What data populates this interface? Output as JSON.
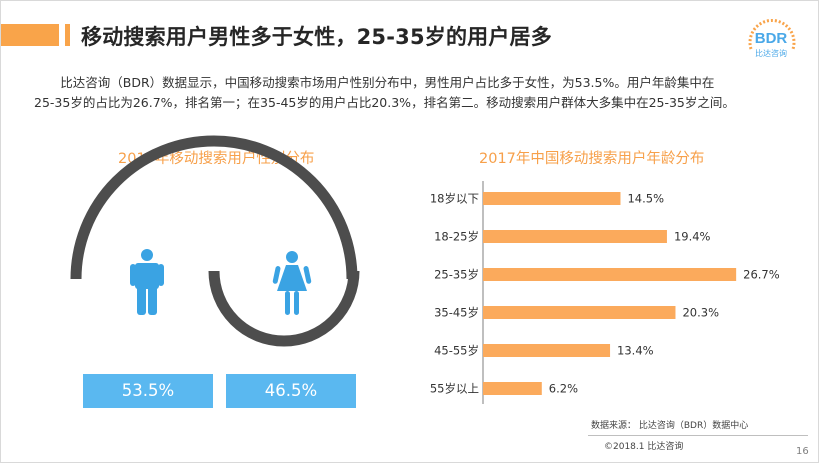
{
  "title": "移动搜索用户男性多于女性，25-35岁的用户居多",
  "logo": {
    "text": "BDR",
    "sub": "比达咨询"
  },
  "description": [
    "比达咨询（BDR）数据显示，中国移动搜索市场用户性别分布中，男性用户占比多于女性，为53.5%。用户年龄集中在",
    "25-35岁的占比为26.7%，排名第一；在35-45岁的用户占比20.3%，排名第二。移动搜索用户群体大多集中在25-35岁之间。"
  ],
  "gender_panel": {
    "title": "2017年移动搜索用户性别分布",
    "male_pct": "53.5%",
    "female_pct": "46.5%",
    "male_icon": "male-person-icon",
    "female_icon": "female-person-icon"
  },
  "chart_data": {
    "type": "bar",
    "orientation": "horizontal",
    "title": "2017年中国移动搜索用户年龄分布",
    "categories": [
      "18岁以下",
      "18-25岁",
      "25-35岁",
      "35-45岁",
      "45-55岁",
      "55岁以上"
    ],
    "values": [
      14.5,
      19.4,
      26.7,
      20.3,
      13.4,
      6.2
    ],
    "value_labels": [
      "14.5%",
      "19.4%",
      "26.7%",
      "20.3%",
      "13.4%",
      "6.2%"
    ],
    "xlim": [
      0,
      27
    ],
    "grid": false,
    "legend": "none"
  },
  "source": "数据来源： 比达咨询（BDR）数据中心",
  "copyright": "©2018.1    比达咨询",
  "page_number": "16",
  "colors": {
    "accent": "#f9a44a",
    "bar": "#fbaa5c",
    "icon_blue": "#3aa3e3",
    "pct_box": "#5ab8f0",
    "wave": "#4d4d4d"
  }
}
